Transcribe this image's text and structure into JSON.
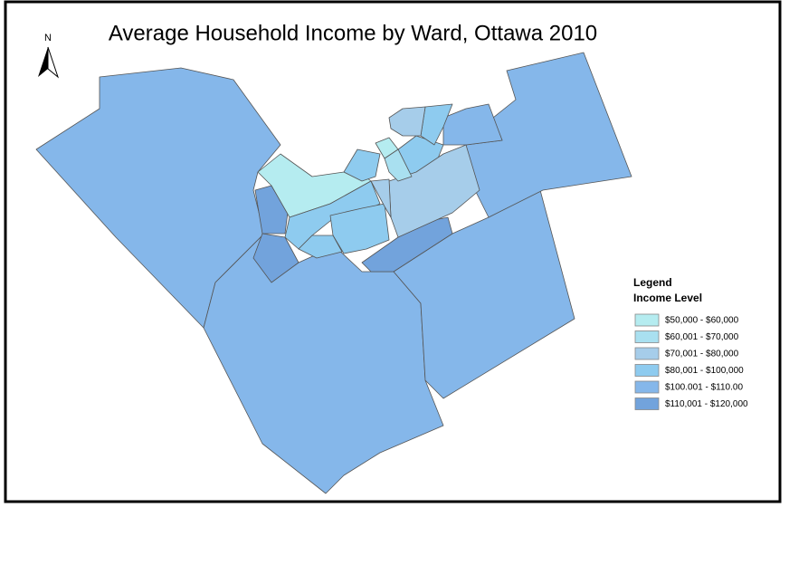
{
  "map": {
    "title": "Average Household Income by Ward, Ottawa 2010",
    "north_label": "N",
    "legend": {
      "heading": "Legend",
      "subheading": "Income Level",
      "items": [
        {
          "label": "$50,000 - $60,000",
          "color": "#b5ecf0"
        },
        {
          "label": "$60,001 - $70,000",
          "color": "#a9e0f0"
        },
        {
          "label": "$70,001 - $80,000",
          "color": "#a6cdea"
        },
        {
          "label": "$80,001 - $100,000",
          "color": "#8ecbef"
        },
        {
          "label": "$100.001 - $110.00",
          "color": "#85b7ea"
        },
        {
          "label": "$110,001 - $120,000",
          "color": "#72a3dc"
        }
      ]
    }
  }
}
